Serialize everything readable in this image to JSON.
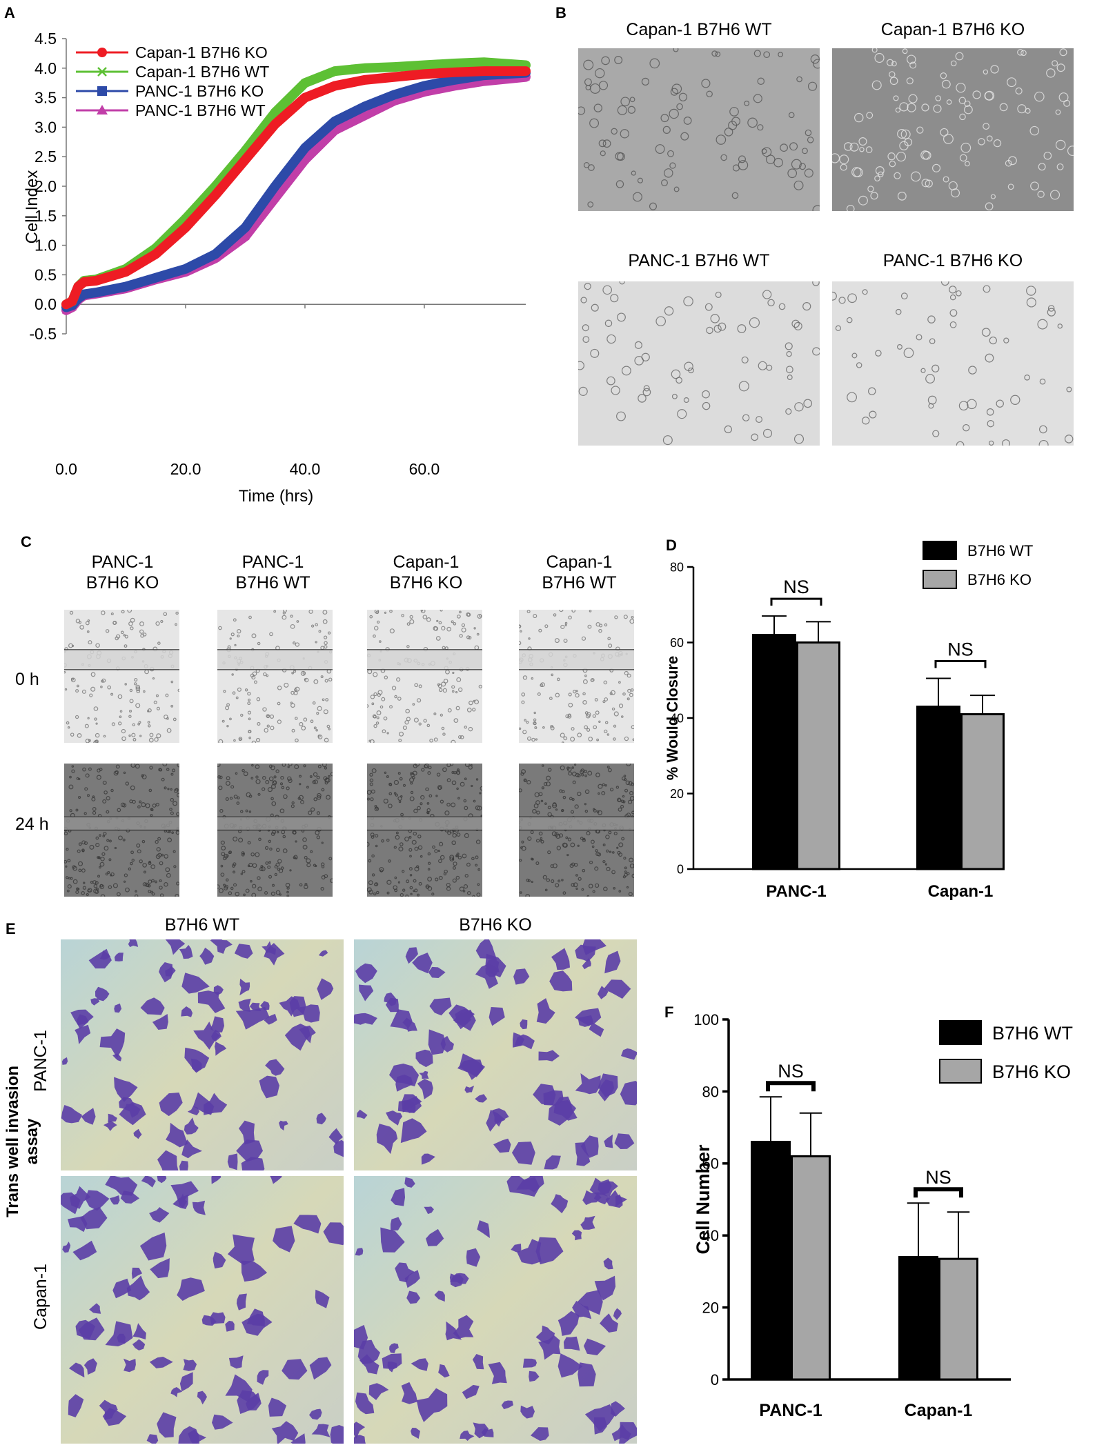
{
  "panels": {
    "a": {
      "letter": "A",
      "chart_data": {
        "type": "line",
        "xlabel": "Time (hrs)",
        "ylabel": "Cell Index",
        "xlim": [
          0,
          77
        ],
        "ylim": [
          -0.5,
          4.5
        ],
        "xticks": [
          "0.0",
          "20.0",
          "40.0",
          "60.0"
        ],
        "yticks": [
          "-0.5",
          "0.0",
          "0.5",
          "1.0",
          "1.5",
          "2.0",
          "2.5",
          "3.0",
          "3.5",
          "4.0",
          "4.5"
        ],
        "legend_position": "top-left",
        "series": [
          {
            "name": "Capan-1 B7H6 KO",
            "color": "#ee1c24",
            "marker": "circle",
            "x": [
              0,
              1,
              2,
              3,
              5,
              10,
              15,
              20,
              25,
              30,
              35,
              40,
              45,
              50,
              55,
              60,
              65,
              70,
              77
            ],
            "y": [
              0,
              0.05,
              0.3,
              0.38,
              0.4,
              0.55,
              0.85,
              1.3,
              1.85,
              2.45,
              3.05,
              3.5,
              3.7,
              3.8,
              3.85,
              3.9,
              3.93,
              3.95,
              3.95
            ]
          },
          {
            "name": "Capan-1 B7H6 WT",
            "color": "#5dc034",
            "marker": "x",
            "x": [
              0,
              1,
              2,
              3,
              5,
              10,
              15,
              20,
              25,
              30,
              35,
              40,
              45,
              50,
              55,
              60,
              65,
              70,
              77
            ],
            "y": [
              0,
              0.05,
              0.3,
              0.4,
              0.42,
              0.6,
              0.95,
              1.45,
              2.0,
              2.6,
              3.25,
              3.75,
              3.95,
              4.0,
              4.02,
              4.05,
              4.08,
              4.1,
              4.05
            ]
          },
          {
            "name": "PANC-1 B7H6 KO",
            "color": "#2d4aa8",
            "marker": "square",
            "x": [
              0,
              1,
              2,
              3,
              5,
              10,
              15,
              20,
              25,
              30,
              35,
              40,
              45,
              50,
              55,
              60,
              65,
              70,
              77
            ],
            "y": [
              -0.05,
              -0.02,
              0.1,
              0.17,
              0.2,
              0.3,
              0.45,
              0.6,
              0.85,
              1.3,
              2.0,
              2.65,
              3.1,
              3.35,
              3.55,
              3.7,
              3.8,
              3.88,
              3.92
            ]
          },
          {
            "name": "PANC-1 B7H6 WT",
            "color": "#c13ea8",
            "marker": "triangle",
            "x": [
              0,
              1,
              2,
              3,
              5,
              10,
              15,
              20,
              25,
              30,
              35,
              40,
              45,
              50,
              55,
              60,
              65,
              70,
              77
            ],
            "y": [
              -0.1,
              -0.05,
              0.08,
              0.15,
              0.18,
              0.27,
              0.42,
              0.55,
              0.78,
              1.15,
              1.8,
              2.45,
              2.95,
              3.2,
              3.45,
              3.6,
              3.7,
              3.78,
              3.85
            ]
          }
        ]
      }
    },
    "b": {
      "letter": "B",
      "images": [
        {
          "title": "Capan-1 B7H6 WT",
          "tone": "#a9a9a9"
        },
        {
          "title": "Capan-1 B7H6 KO",
          "tone": "#8d8d8d"
        },
        {
          "title": "PANC-1 B7H6 WT",
          "tone": "#dcdcdc"
        },
        {
          "title": "PANC-1 B7H6 KO",
          "tone": "#e0e0e0"
        }
      ]
    },
    "c": {
      "letter": "C",
      "columns": [
        {
          "line1": "PANC-1",
          "line2": "B7H6 KO"
        },
        {
          "line1": "PANC-1",
          "line2": "B7H6 WT"
        },
        {
          "line1": "Capan-1",
          "line2": "B7H6 KO"
        },
        {
          "line1": "Capan-1",
          "line2": "B7H6 WT"
        }
      ],
      "rows": [
        "0 h",
        "24 h"
      ]
    },
    "d": {
      "letter": "D",
      "chart_data": {
        "type": "bar",
        "ylabel": "% Would Closure",
        "categories": [
          "PANC-1",
          "Capan-1"
        ],
        "ylim": [
          0,
          80
        ],
        "yticks": [
          "0",
          "20",
          "40",
          "60",
          "80"
        ],
        "legend_position": "top-right",
        "series": [
          {
            "name": "B7H6 WT",
            "color": "#000000",
            "values": [
              62,
              43
            ],
            "errors": [
              5,
              7.5
            ]
          },
          {
            "name": "B7H6 KO",
            "color": "#a6a6a6",
            "values": [
              60,
              41
            ],
            "errors": [
              5.5,
              5
            ]
          }
        ],
        "annotations": [
          "NS",
          "NS"
        ]
      }
    },
    "e": {
      "letter": "E",
      "side_label": "Trans well invasion assay",
      "columns": [
        "B7H6 WT",
        "B7H6 KO"
      ],
      "rows": [
        "PANC-1",
        "Capan-1"
      ]
    },
    "f": {
      "letter": "F",
      "chart_data": {
        "type": "bar",
        "ylabel": "Cell Number",
        "categories": [
          "PANC-1",
          "Capan-1"
        ],
        "ylim": [
          0,
          100
        ],
        "yticks": [
          "0",
          "20",
          "40",
          "60",
          "80",
          "100"
        ],
        "legend_position": "top-right",
        "series": [
          {
            "name": "B7H6 WT",
            "color": "#000000",
            "values": [
              66,
              34
            ],
            "errors": [
              12.5,
              15
            ]
          },
          {
            "name": "B7H6 KO",
            "color": "#a6a6a6",
            "values": [
              62,
              33.5
            ],
            "errors": [
              12,
              13
            ]
          }
        ],
        "annotations": [
          "NS",
          "NS"
        ]
      }
    }
  }
}
